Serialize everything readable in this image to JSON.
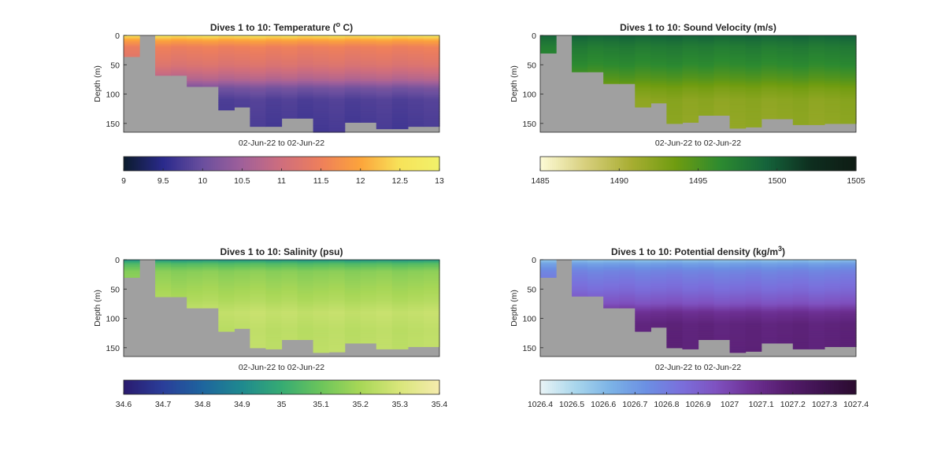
{
  "figure": {
    "background": "#ffffff",
    "no_data_color": "#a0a0a0"
  },
  "chart_data": [
    {
      "type": "heatmap",
      "title": "Dives 1 to 10: Temperature (° C)",
      "title_parts": {
        "main": "Dives 1 to 10: Temperature (",
        "sup": "o",
        "tail": " C)"
      },
      "ylabel": "Depth (m)",
      "xlabel": "02-Jun-22 to 02-Jun-22",
      "ylim": [
        0,
        165
      ],
      "y_reversed": true,
      "y_ticks": [
        "0",
        "50",
        "100",
        "150"
      ],
      "columns": 20,
      "column_max_depth": [
        36,
        0,
        68,
        68,
        87,
        87,
        127,
        122,
        155,
        155,
        141,
        141,
        165,
        165,
        148,
        148,
        159,
        159,
        155,
        155
      ],
      "color_scale": {
        "min": 9,
        "max": 13,
        "tick_labels": [
          "9",
          "9.5",
          "10",
          "10.5",
          "11",
          "11.5",
          "12",
          "12.5",
          "13"
        ],
        "colors": [
          "#0b1b2c",
          "#2a2a8c",
          "#6a4f9e",
          "#a0609a",
          "#cf6e7d",
          "#ee7f5b",
          "#fca43b",
          "#f7e35a",
          "#f1f16a"
        ]
      },
      "profile": {
        "depths": [
          0,
          8,
          20,
          50,
          75,
          90,
          110,
          165
        ],
        "values": [
          12.6,
          12.0,
          11.5,
          11.2,
          10.7,
          10.1,
          9.8,
          9.7
        ]
      }
    },
    {
      "type": "heatmap",
      "title": "Dives 1 to 10: Sound Velocity (m/s)",
      "title_parts": {
        "main": "Dives 1 to 10: Sound Velocity (m/s)"
      },
      "ylabel": "Depth (m)",
      "xlabel": "02-Jun-22 to 02-Jun-22",
      "ylim": [
        0,
        165
      ],
      "y_reversed": true,
      "y_ticks": [
        "0",
        "50",
        "100",
        "150"
      ],
      "columns": 20,
      "column_max_depth": [
        30,
        0,
        62,
        62,
        82,
        82,
        122,
        115,
        150,
        148,
        136,
        136,
        158,
        156,
        142,
        142,
        152,
        152,
        150,
        150
      ],
      "color_scale": {
        "min": 1485,
        "max": 1505,
        "tick_labels": [
          "1485",
          "1490",
          "1495",
          "1500",
          "1505"
        ],
        "colors": [
          "#fdfbd6",
          "#d7cf7d",
          "#a9ae33",
          "#6f9c10",
          "#2c8a30",
          "#15643b",
          "#0e2e1f",
          "#0f1c14"
        ]
      },
      "profile": {
        "depths": [
          0,
          5,
          20,
          50,
          75,
          90,
          110,
          165
        ],
        "values": [
          1499.5,
          1498.8,
          1497.6,
          1496.4,
          1494.6,
          1493.2,
          1492.2,
          1491.8
        ]
      }
    },
    {
      "type": "heatmap",
      "title": "Dives 1 to 10: Salinity (psu)",
      "title_parts": {
        "main": "Dives 1 to 10: Salinity (psu)"
      },
      "ylabel": "Depth (m)",
      "xlabel": "02-Jun-22 to 02-Jun-22",
      "ylim": [
        0,
        165
      ],
      "y_reversed": true,
      "y_ticks": [
        "0",
        "50",
        "100",
        "150"
      ],
      "columns": 20,
      "column_max_depth": [
        30,
        0,
        63,
        63,
        82,
        82,
        122,
        117,
        150,
        152,
        136,
        136,
        158,
        157,
        142,
        142,
        152,
        152,
        148,
        148
      ],
      "color_scale": {
        "min": 34.6,
        "max": 35.4,
        "tick_labels": [
          "34.6",
          "34.7",
          "34.8",
          "34.9",
          "35",
          "35.1",
          "35.2",
          "35.3",
          "35.4"
        ],
        "colors": [
          "#2a1b6e",
          "#2a3e9a",
          "#1e659e",
          "#1f8a8f",
          "#36ab73",
          "#6cc55b",
          "#a8d757",
          "#d9e67b",
          "#f5ebad"
        ]
      },
      "profile": {
        "depths": [
          0,
          6,
          20,
          40,
          70,
          90,
          120,
          165
        ],
        "values": [
          34.92,
          35.05,
          35.15,
          35.18,
          35.22,
          35.26,
          35.24,
          35.25
        ]
      }
    },
    {
      "type": "heatmap",
      "title": "Dives 1 to 10: Potential density (kg/m³)",
      "title_parts": {
        "main": "Dives 1 to 10: Potential density (kg/m",
        "sup": "3",
        "tail": ")"
      },
      "ylabel": "Depth (m)",
      "xlabel": "02-Jun-22 to 02-Jun-22",
      "ylim": [
        0,
        165
      ],
      "y_reversed": true,
      "y_ticks": [
        "0",
        "50",
        "100",
        "150"
      ],
      "columns": 20,
      "column_max_depth": [
        30,
        0,
        62,
        62,
        82,
        82,
        122,
        115,
        150,
        152,
        136,
        136,
        158,
        156,
        142,
        142,
        152,
        152,
        148,
        148
      ],
      "color_scale": {
        "min": 1026.4,
        "max": 1027.4,
        "tick_labels": [
          "1026.4",
          "1026.5",
          "1026.6",
          "1026.7",
          "1026.8",
          "1026.9",
          "1027",
          "1027.1",
          "1027.2",
          "1027.3",
          "1027.4"
        ],
        "colors": [
          "#e9f4f6",
          "#a9d6ec",
          "#7cb3e6",
          "#6b90e3",
          "#7a70dc",
          "#7f52c0",
          "#6e3195",
          "#561d6e",
          "#3f1350",
          "#2b0c2f"
        ]
      },
      "profile": {
        "depths": [
          0,
          6,
          20,
          50,
          75,
          90,
          110,
          165
        ],
        "values": [
          1026.55,
          1026.68,
          1026.78,
          1026.86,
          1026.96,
          1027.08,
          1027.14,
          1027.15
        ]
      }
    }
  ]
}
